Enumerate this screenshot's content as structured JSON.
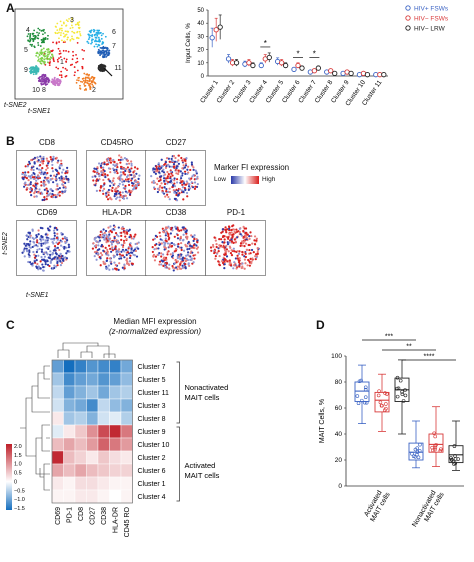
{
  "panels": {
    "a": "A",
    "b": "B",
    "c": "C",
    "d": "D"
  },
  "tsne_axes": {
    "x": "t-SNE1",
    "y": "t-SNE2"
  },
  "panel_a": {
    "cluster_numbers": [
      "1",
      "2",
      "3",
      "4",
      "5",
      "6",
      "7",
      "8",
      "9",
      "10",
      "11"
    ],
    "map_colors": [
      "#e8171a",
      "#f07b22",
      "#f5e83a",
      "#1d8c3a",
      "#7fd24a",
      "#23aee6",
      "#1f5db5",
      "#8a3aa8",
      "#3bb8b4",
      "#c878c9",
      "#2a2a2a"
    ]
  },
  "panel_b": {
    "markers": [
      "CD8",
      "CD45RO",
      "CD27",
      "CD69",
      "HLA-DR",
      "CD38",
      "PD-1"
    ],
    "legend_title": "Marker FI expression",
    "legend_low": "Low",
    "legend_high": "High"
  },
  "panel_c": {
    "title_line1": "Median MFI expression",
    "title_line2": "(z-normalized expression)",
    "rows": [
      "Cluster 7",
      "Cluster 5",
      "Cluster 11",
      "Cluster 3",
      "Cluster 8",
      "Cluster 9",
      "Cluster 10",
      "Cluster 2",
      "Cluster 6",
      "Cluster 1",
      "Cluster 4"
    ],
    "cols": [
      "CD69",
      "PD-1",
      "CD8",
      "CD27",
      "CD38",
      "HLA-DR",
      "CD45 RO"
    ],
    "group_nonactivated": [
      "Nonactivated",
      "MAIT cells"
    ],
    "group_activated": [
      "Activated",
      "MAIT cells"
    ],
    "scale_ticks": [
      "2.0",
      "1.5",
      "1.0",
      "0.5",
      "0",
      "−0.5",
      "−1.0",
      "−1.5"
    ],
    "values": [
      [
        -1.0,
        -1.5,
        -1.3,
        -1.1,
        -1.2,
        -1.3,
        -0.9
      ],
      [
        -0.6,
        -1.2,
        -1.0,
        -0.9,
        -1.1,
        -1.0,
        -0.7
      ],
      [
        -0.4,
        -1.0,
        -0.8,
        -0.6,
        -0.9,
        -0.6,
        -0.5
      ],
      [
        -0.3,
        -0.8,
        -0.9,
        -1.2,
        -0.4,
        -0.7,
        -0.8
      ],
      [
        0.2,
        -0.6,
        -0.5,
        -0.8,
        -0.3,
        -0.2,
        -0.5
      ],
      [
        -0.2,
        0.2,
        0.5,
        1.0,
        1.6,
        1.9,
        1.2
      ],
      [
        0.6,
        0.8,
        0.6,
        0.9,
        1.4,
        1.2,
        0.9
      ],
      [
        1.9,
        0.6,
        0.4,
        0.2,
        0.5,
        0.3,
        0.2
      ],
      [
        0.8,
        0.6,
        0.8,
        0.6,
        0.5,
        0.4,
        0.4
      ],
      [
        0.2,
        0.1,
        0.3,
        0.3,
        0.2,
        0.1,
        0.1
      ],
      [
        0.1,
        0.1,
        0.2,
        0.2,
        0.1,
        0.0,
        0.1
      ]
    ]
  },
  "chart_data": [
    {
      "type": "scatter",
      "ylabel": "Input Cells, %",
      "categories": [
        "Cluster 1",
        "Cluster 2",
        "Cluster 3",
        "Cluster 4",
        "Cluster 5",
        "Cluster 6",
        "Cluster 7",
        "Cluster 8",
        "Cluster 9",
        "Cluster 10",
        "Cluster 11"
      ],
      "ylim": [
        0,
        50
      ],
      "yticks": [
        "0",
        "10",
        "20",
        "30",
        "40",
        "50"
      ],
      "series": [
        {
          "name": "HIV+ FSWs",
          "color": "#3b63c4",
          "values": [
            29,
            13,
            9,
            8,
            11,
            5,
            3,
            3,
            2,
            1,
            1
          ]
        },
        {
          "name": "HIV− FSWs",
          "color": "#d83a3a",
          "values": [
            35,
            10,
            10,
            13,
            10,
            8,
            4,
            4,
            3,
            2,
            1
          ]
        },
        {
          "name": "HIV− LRW",
          "color": "#222222",
          "values": [
            37,
            10,
            8,
            14,
            8,
            6,
            6,
            2,
            2,
            1,
            1
          ]
        }
      ],
      "significance": [
        "*",
        "*",
        "*"
      ]
    },
    {
      "type": "box",
      "ylabel": "MAIT Cells, %",
      "ylim": [
        0,
        100
      ],
      "yticks": [
        "0",
        "20",
        "40",
        "60",
        "80",
        "100"
      ],
      "groups": [
        "Activated MAIT cells",
        "Nonactivated MAIT cells"
      ],
      "series": [
        {
          "color": "#3b63c4",
          "activated": {
            "min": 48,
            "q1": 65,
            "median": 73,
            "q3": 80,
            "max": 93
          },
          "nonactivated": {
            "min": 14,
            "q1": 20,
            "median": 26,
            "q3": 33,
            "max": 50
          }
        },
        {
          "color": "#d83a3a",
          "activated": {
            "min": 42,
            "q1": 57,
            "median": 66,
            "q3": 72,
            "max": 86
          },
          "nonactivated": {
            "min": 15,
            "q1": 26,
            "median": 32,
            "q3": 40,
            "max": 61
          }
        },
        {
          "color": "#222222",
          "activated": {
            "min": 40,
            "q1": 65,
            "median": 74,
            "q3": 83,
            "max": 97
          },
          "nonactivated": {
            "min": 12,
            "q1": 18,
            "median": 24,
            "q3": 31,
            "max": 50
          }
        }
      ],
      "significance": [
        "***",
        "**",
        "****"
      ]
    }
  ]
}
